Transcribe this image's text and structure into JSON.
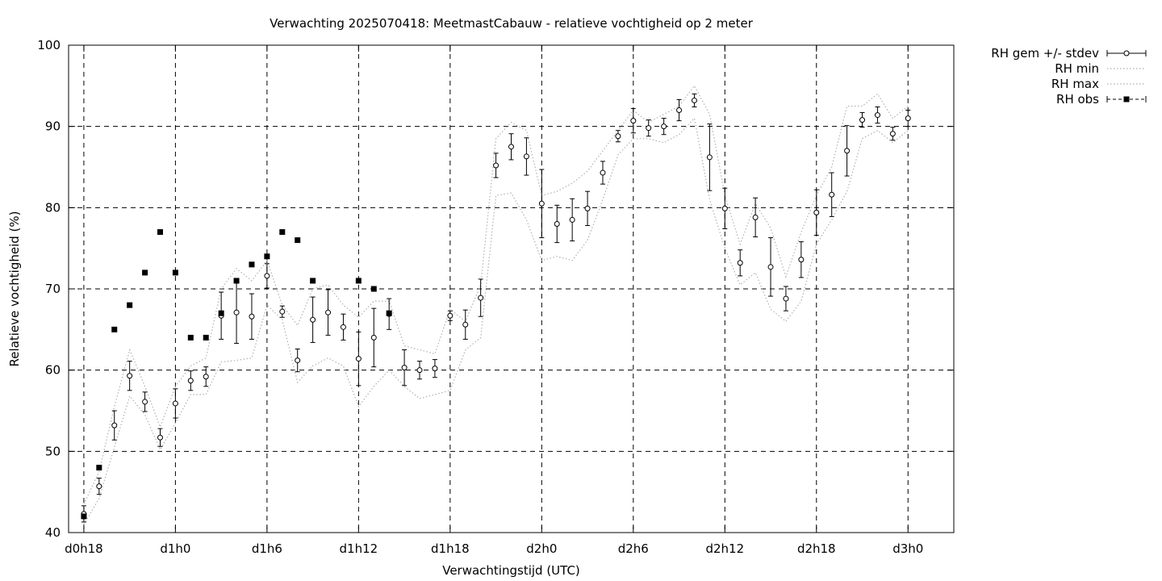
{
  "chart_data": {
    "type": "line",
    "title": "Verwachting 2025070418: MeetmastCabauw - relatieve vochtigheid op 2 meter",
    "xlabel": "Verwachtingstijd (UTC)",
    "ylabel": "Relatieve vochtigheid (%)",
    "x_unit": "hours since d0h0",
    "xlim": [
      17,
      75
    ],
    "ylim": [
      40,
      100
    ],
    "xticks": [
      {
        "value": 18,
        "label": "d0h18"
      },
      {
        "value": 24,
        "label": "d1h0"
      },
      {
        "value": 30,
        "label": "d1h6"
      },
      {
        "value": 36,
        "label": "d1h12"
      },
      {
        "value": 42,
        "label": "d1h18"
      },
      {
        "value": 48,
        "label": "d2h0"
      },
      {
        "value": 54,
        "label": "d2h6"
      },
      {
        "value": 60,
        "label": "d2h12"
      },
      {
        "value": 66,
        "label": "d2h18"
      },
      {
        "value": 72,
        "label": "d3h0"
      }
    ],
    "yticks": [
      40,
      50,
      60,
      70,
      80,
      90,
      100
    ],
    "grid": true,
    "legend_position": "outside-top-right",
    "x": [
      18,
      19,
      20,
      21,
      22,
      23,
      24,
      25,
      26,
      27,
      28,
      29,
      30,
      31,
      32,
      33,
      34,
      35,
      36,
      37,
      38,
      39,
      40,
      41,
      42,
      43,
      44,
      45,
      46,
      47,
      48,
      49,
      50,
      51,
      52,
      53,
      54,
      55,
      56,
      57,
      58,
      59,
      60,
      61,
      62,
      63,
      64,
      65,
      66,
      67,
      68,
      69,
      70,
      71,
      72
    ],
    "series": [
      {
        "name": "RH gem +/- stdev",
        "style": "errorbars",
        "values": [
          42.3,
          45.7,
          53.2,
          59.3,
          56.1,
          51.7,
          55.9,
          58.7,
          59.2,
          66.7,
          67.1,
          66.6,
          71.6,
          67.2,
          61.2,
          66.2,
          67.1,
          65.3,
          61.4,
          64.0,
          66.9,
          60.3,
          60.0,
          60.2,
          66.7,
          65.6,
          68.9,
          85.2,
          87.5,
          86.3,
          80.5,
          78.0,
          78.5,
          79.9,
          84.3,
          88.8,
          90.7,
          89.8,
          90.0,
          92.0,
          93.2,
          86.2,
          79.9,
          73.2,
          78.8,
          72.7,
          68.8,
          73.6,
          79.4,
          81.6,
          87.0,
          90.8,
          91.4,
          89.1,
          91.0
        ],
        "stdev": [
          1.0,
          1.0,
          1.8,
          1.8,
          1.2,
          1.1,
          1.8,
          1.2,
          1.2,
          2.9,
          3.8,
          2.8,
          1.5,
          0.7,
          1.4,
          2.8,
          2.8,
          1.6,
          3.3,
          3.6,
          1.9,
          2.2,
          1.1,
          1.1,
          0.6,
          1.8,
          2.3,
          1.5,
          1.6,
          2.3,
          4.2,
          2.3,
          2.6,
          2.1,
          1.4,
          0.7,
          1.5,
          1.0,
          1.0,
          1.3,
          0.8,
          4.1,
          2.5,
          1.6,
          2.4,
          3.6,
          1.5,
          2.2,
          2.8,
          2.7,
          3.1,
          0.9,
          1.0,
          0.8,
          1.0
        ]
      },
      {
        "name": "RH min",
        "style": "dotted",
        "values": [
          41.0,
          44.2,
          50.5,
          56.8,
          54.5,
          50.2,
          53.5,
          57.0,
          57.0,
          61.0,
          61.2,
          61.5,
          68.0,
          66.2,
          58.5,
          60.5,
          61.5,
          60.5,
          55.5,
          58.0,
          60.0,
          58.0,
          56.5,
          57.0,
          57.5,
          62.5,
          64.0,
          81.5,
          81.8,
          78.5,
          73.5,
          74.0,
          73.5,
          76.0,
          81.0,
          86.5,
          88.5,
          88.5,
          88.0,
          89.0,
          91.0,
          81.0,
          75.0,
          70.5,
          72.0,
          67.5,
          66.0,
          68.5,
          75.5,
          78.5,
          82.0,
          88.5,
          89.5,
          88.0,
          89.5
        ]
      },
      {
        "name": "RH max",
        "style": "dotted",
        "values": [
          43.5,
          47.5,
          55.5,
          62.5,
          58.0,
          53.0,
          58.0,
          60.5,
          61.5,
          70.0,
          72.5,
          71.0,
          73.5,
          68.0,
          65.5,
          70.0,
          70.5,
          68.0,
          66.5,
          68.5,
          68.5,
          63.0,
          62.5,
          62.0,
          67.5,
          66.0,
          70.5,
          88.5,
          90.5,
          89.5,
          81.5,
          82.0,
          83.0,
          84.5,
          87.0,
          89.5,
          92.0,
          90.5,
          91.5,
          92.5,
          95.0,
          91.5,
          81.5,
          75.5,
          80.5,
          77.5,
          71.5,
          77.0,
          81.5,
          85.0,
          92.5,
          92.5,
          94.0,
          91.0,
          92.5
        ]
      },
      {
        "name": "RH obs",
        "style": "points",
        "x": [
          18,
          19,
          20,
          21,
          22,
          23,
          24,
          25,
          26,
          27,
          28,
          29,
          30,
          31,
          32,
          33,
          36,
          37,
          38
        ],
        "values": [
          42,
          48,
          65,
          68,
          72,
          77,
          72,
          64,
          64,
          67,
          71,
          73,
          74,
          77,
          76,
          71,
          71,
          70,
          67
        ]
      }
    ]
  }
}
